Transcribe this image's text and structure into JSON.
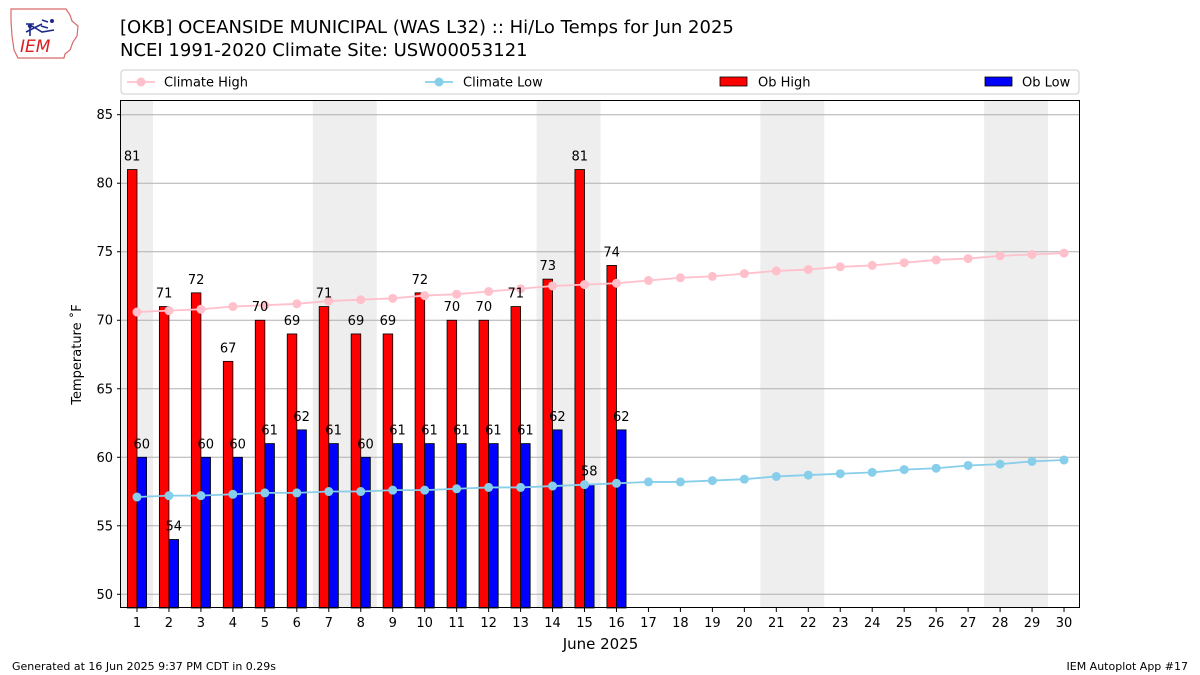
{
  "header": {
    "title_line1": "[OKB] OCEANSIDE MUNICIPAL (WAS L32) :: Hi/Lo Temps for Jun 2025",
    "title_line2": "NCEI 1991-2020 Climate Site: USW00053121",
    "logo_text": "IEM"
  },
  "footer": {
    "generated": "Generated at 16 Jun 2025 9:37 PM CDT in 0.29s",
    "app": "IEM Autoplot App #17"
  },
  "colors": {
    "ob_high": "#ff0000",
    "ob_low": "#0000ff",
    "climate_high": "#ffc0cb",
    "climate_low": "#87ceeb",
    "weekend_band": "#eeeeee",
    "grid": "#b0b0b0"
  },
  "chart_data": {
    "type": "bar",
    "xlabel": "June 2025",
    "ylabel": "Temperature ˚F",
    "ylim": [
      49,
      86
    ],
    "yticks": [
      50,
      55,
      60,
      65,
      70,
      75,
      80,
      85
    ],
    "xlim": [
      0.5,
      30.5
    ],
    "grid": "horizontal",
    "legend_position": "top",
    "legend": [
      "Climate High",
      "Climate Low",
      "Ob High",
      "Ob Low"
    ],
    "days": [
      1,
      2,
      3,
      4,
      5,
      6,
      7,
      8,
      9,
      10,
      11,
      12,
      13,
      14,
      15,
      16,
      17,
      18,
      19,
      20,
      21,
      22,
      23,
      24,
      25,
      26,
      27,
      28,
      29,
      30
    ],
    "weekend_bands": [
      [
        0.5,
        1.5
      ],
      [
        6.5,
        8.5
      ],
      [
        13.5,
        15.5
      ],
      [
        20.5,
        22.5
      ],
      [
        27.5,
        29.5
      ]
    ],
    "series": [
      {
        "name": "Ob High",
        "type": "bar",
        "values": [
          81,
          71,
          72,
          67,
          70,
          69,
          71,
          69,
          69,
          72,
          70,
          70,
          71,
          73,
          81,
          74
        ]
      },
      {
        "name": "Ob Low",
        "type": "bar",
        "values": [
          60,
          54,
          60,
          60,
          61,
          62,
          61,
          60,
          61,
          61,
          61,
          61,
          61,
          62,
          58,
          62
        ]
      },
      {
        "name": "Climate High",
        "type": "line",
        "values": [
          70.6,
          70.7,
          70.8,
          71.0,
          71.1,
          71.2,
          71.4,
          71.5,
          71.6,
          71.8,
          71.9,
          72.1,
          72.3,
          72.5,
          72.6,
          72.7,
          72.9,
          73.1,
          73.2,
          73.4,
          73.6,
          73.7,
          73.9,
          74.0,
          74.2,
          74.4,
          74.5,
          74.7,
          74.8,
          74.9
        ]
      },
      {
        "name": "Climate Low",
        "type": "line",
        "values": [
          57.1,
          57.2,
          57.2,
          57.3,
          57.4,
          57.4,
          57.5,
          57.5,
          57.6,
          57.6,
          57.7,
          57.8,
          57.8,
          57.9,
          58.0,
          58.1,
          58.2,
          58.2,
          58.3,
          58.4,
          58.6,
          58.7,
          58.8,
          58.9,
          59.1,
          59.2,
          59.4,
          59.5,
          59.7,
          59.8
        ]
      }
    ]
  }
}
